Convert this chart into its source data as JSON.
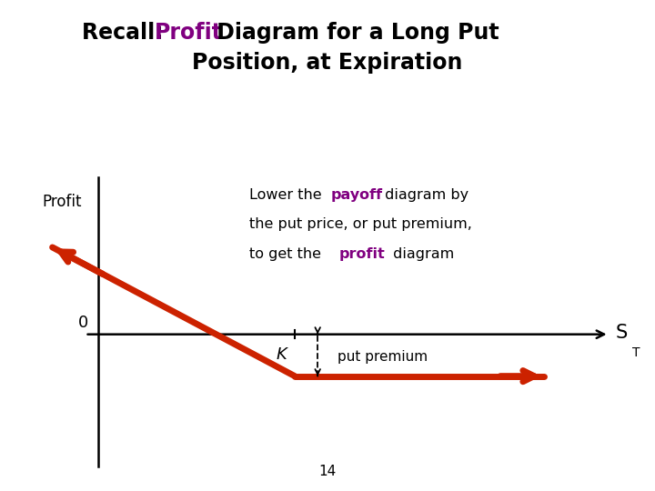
{
  "bg_color": "#ffffff",
  "line_color": "#cc2200",
  "title_black": "#000000",
  "title_purple": "#800080",
  "K_x": 5.0,
  "premium": 1.2,
  "x_axis_start": 1.8,
  "x_axis_end": 9.8,
  "y_axis_x": 2.0,
  "y_axis_top": 4.5,
  "y_axis_bottom": -3.8,
  "xlim": [
    0.5,
    10.5
  ],
  "ylim": [
    -4.5,
    6.5
  ],
  "line_lw": 5.0,
  "profit_label": "Profit",
  "zero_label": "0",
  "K_label": "K",
  "ST_label": "S",
  "ST_sub": "T",
  "put_premium_label": "put premium",
  "page_number": "14",
  "ann1_plain1": "Lower the ",
  "ann1_colored": "payoff",
  "ann1_plain2": " diagram by",
  "ann2": "the put price, or put premium,",
  "ann3_plain1": "to get the ",
  "ann3_colored": "profit",
  "ann3_plain2": " diagram"
}
